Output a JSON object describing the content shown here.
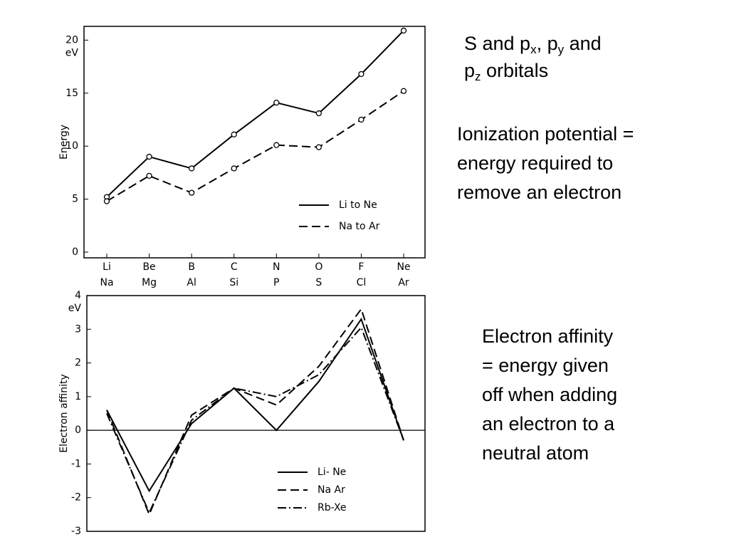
{
  "slide": {
    "heading": [
      {
        "text": "S and p"
      },
      {
        "sub": "x"
      },
      {
        "text": ", p"
      },
      {
        "sub": "y"
      },
      {
        "text": " and"
      },
      {
        "br": "p"
      },
      {
        "sub": "z"
      },
      {
        "text": " orbitals"
      }
    ],
    "ionization": [
      "Ionization potential =",
      "energy required to",
      "remove an electron"
    ],
    "affinity": [
      "Electron affinity",
      "= energy given",
      "off when adding",
      "an electron to a",
      "neutral atom"
    ]
  },
  "chart_data": [
    {
      "type": "line",
      "ylabel": "Energy",
      "yunit": "eV",
      "markers": true,
      "categories": [
        [
          "Li",
          "Na"
        ],
        [
          "Be",
          "Mg"
        ],
        [
          "B",
          "Al"
        ],
        [
          "C",
          "Si"
        ],
        [
          "N",
          "P"
        ],
        [
          "O",
          "S"
        ],
        [
          "F",
          "Cl"
        ],
        [
          "Ne",
          "Ar"
        ]
      ],
      "ylim": [
        0,
        21.3
      ],
      "yticks": [
        0,
        5,
        10,
        15,
        20
      ],
      "legend": "bottom-right",
      "series": [
        {
          "name": "Li to Ne",
          "color": "#000000",
          "dash": "solid",
          "values": [
            5.2,
            9.0,
            7.9,
            11.1,
            14.1,
            13.1,
            16.8,
            20.9
          ]
        },
        {
          "name": "Na to Ar",
          "color": "#000000",
          "dash": "dashed",
          "values": [
            4.8,
            7.2,
            5.6,
            7.9,
            10.1,
            9.9,
            12.5,
            15.2
          ]
        }
      ]
    },
    {
      "type": "line",
      "ylabel": "Electron affinity",
      "yunit": "eV",
      "markers": false,
      "zero_line": true,
      "categories": [
        null,
        null,
        null,
        null,
        null,
        null,
        null,
        null
      ],
      "ylim": [
        -3,
        4
      ],
      "yticks": [
        -3,
        -2,
        -1,
        0,
        1,
        2,
        3,
        4
      ],
      "legend": "bottom-right",
      "series": [
        {
          "name": "Li- Ne",
          "color": "#000000",
          "dash": "solid",
          "values": [
            0.6,
            -1.8,
            0.2,
            1.25,
            0,
            1.45,
            3.3,
            -0.3
          ]
        },
        {
          "name": "Na Ar",
          "color": "#000000",
          "dash": "dashed",
          "values": [
            0.6,
            -2.5,
            0.45,
            1.25,
            0.75,
            1.9,
            3.6,
            -0.3
          ]
        },
        {
          "name": "Rb-Xe",
          "color": "#000000",
          "dash": "dashdot",
          "values": [
            0.5,
            -2.45,
            0.3,
            1.25,
            1.0,
            1.65,
            3.05,
            -0.3
          ]
        }
      ]
    }
  ]
}
